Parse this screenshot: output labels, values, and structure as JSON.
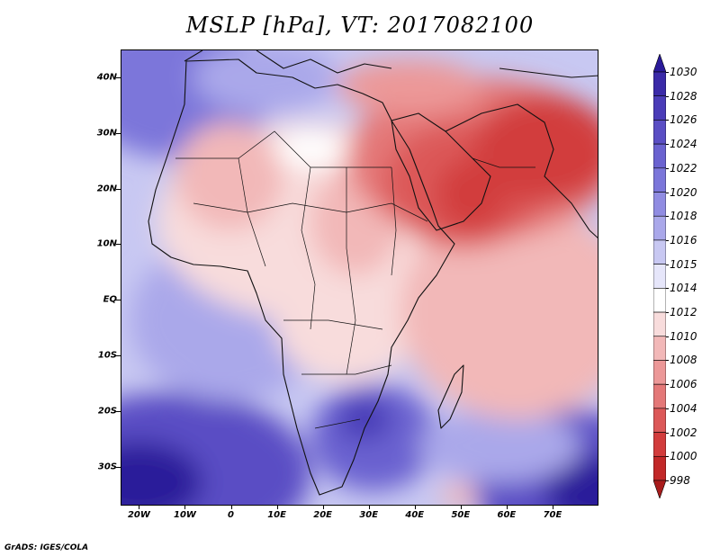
{
  "title": "MSLP [hPa], VT: 2017082100",
  "credit": "GrADS: IGES/COLA",
  "lat_ticks": [
    {
      "label": "40N",
      "lat": 40
    },
    {
      "label": "30N",
      "lat": 30
    },
    {
      "label": "20N",
      "lat": 20
    },
    {
      "label": "10N",
      "lat": 10
    },
    {
      "label": "EQ",
      "lat": 0
    },
    {
      "label": "10S",
      "lat": -10
    },
    {
      "label": "20S",
      "lat": -20
    },
    {
      "label": "30S",
      "lat": -30
    }
  ],
  "lon_ticks": [
    {
      "label": "20W",
      "lon": -20
    },
    {
      "label": "10W",
      "lon": -10
    },
    {
      "label": "0",
      "lon": 0
    },
    {
      "label": "10E",
      "lon": 10
    },
    {
      "label": "20E",
      "lon": 20
    },
    {
      "label": "30E",
      "lon": 30
    },
    {
      "label": "40E",
      "lon": 40
    },
    {
      "label": "50E",
      "lon": 50
    },
    {
      "label": "60E",
      "lon": 60
    },
    {
      "label": "70E",
      "lon": 70
    }
  ],
  "colorbar": {
    "levels": [
      "1030",
      "1028",
      "1026",
      "1024",
      "1022",
      "1020",
      "1018",
      "1016",
      "1015",
      "1014",
      "1012",
      "1010",
      "1008",
      "1006",
      "1004",
      "1002",
      "1000",
      "998"
    ],
    "colors": [
      "#2a1a9a",
      "#3a2aa8",
      "#4a3cb8",
      "#5a4ec4",
      "#6a62d0",
      "#7b76da",
      "#908ce2",
      "#aaa8ea",
      "#c8c8f2",
      "#e6e6fa",
      "#ffffff",
      "#f8dcdc",
      "#f2b8b8",
      "#ec9898",
      "#e47878",
      "#dc5858",
      "#d23c3c",
      "#c22828",
      "#a81c1c"
    ]
  }
}
